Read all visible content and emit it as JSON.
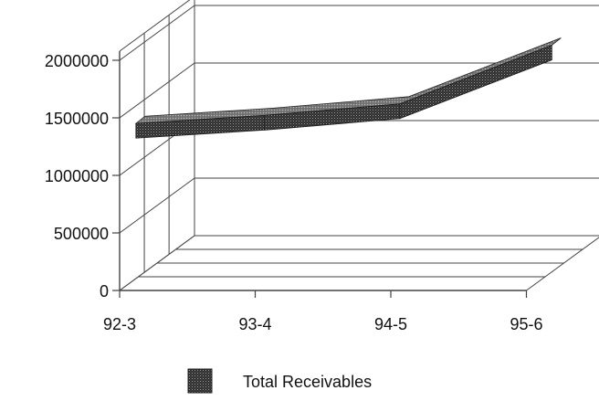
{
  "chart_data": {
    "type": "line",
    "style": "3d-ribbon",
    "title": "",
    "xlabel": "",
    "ylabel": "",
    "categories": [
      "92-3",
      "93-4",
      "94-5",
      "95-6"
    ],
    "series": [
      {
        "name": "Total Receivables",
        "values": [
          1330000,
          1400000,
          1500000,
          2010000
        ]
      }
    ],
    "ylim": [
      0,
      2000000
    ],
    "y_ticks": [
      "0",
      "500000",
      "1000000",
      "1500000",
      "2000000"
    ],
    "grid": true,
    "legend": "bottom-center",
    "colors": {
      "series": "#3a3a3a",
      "ribbon_top": "#8a8a8a",
      "axis": "#444444"
    }
  }
}
